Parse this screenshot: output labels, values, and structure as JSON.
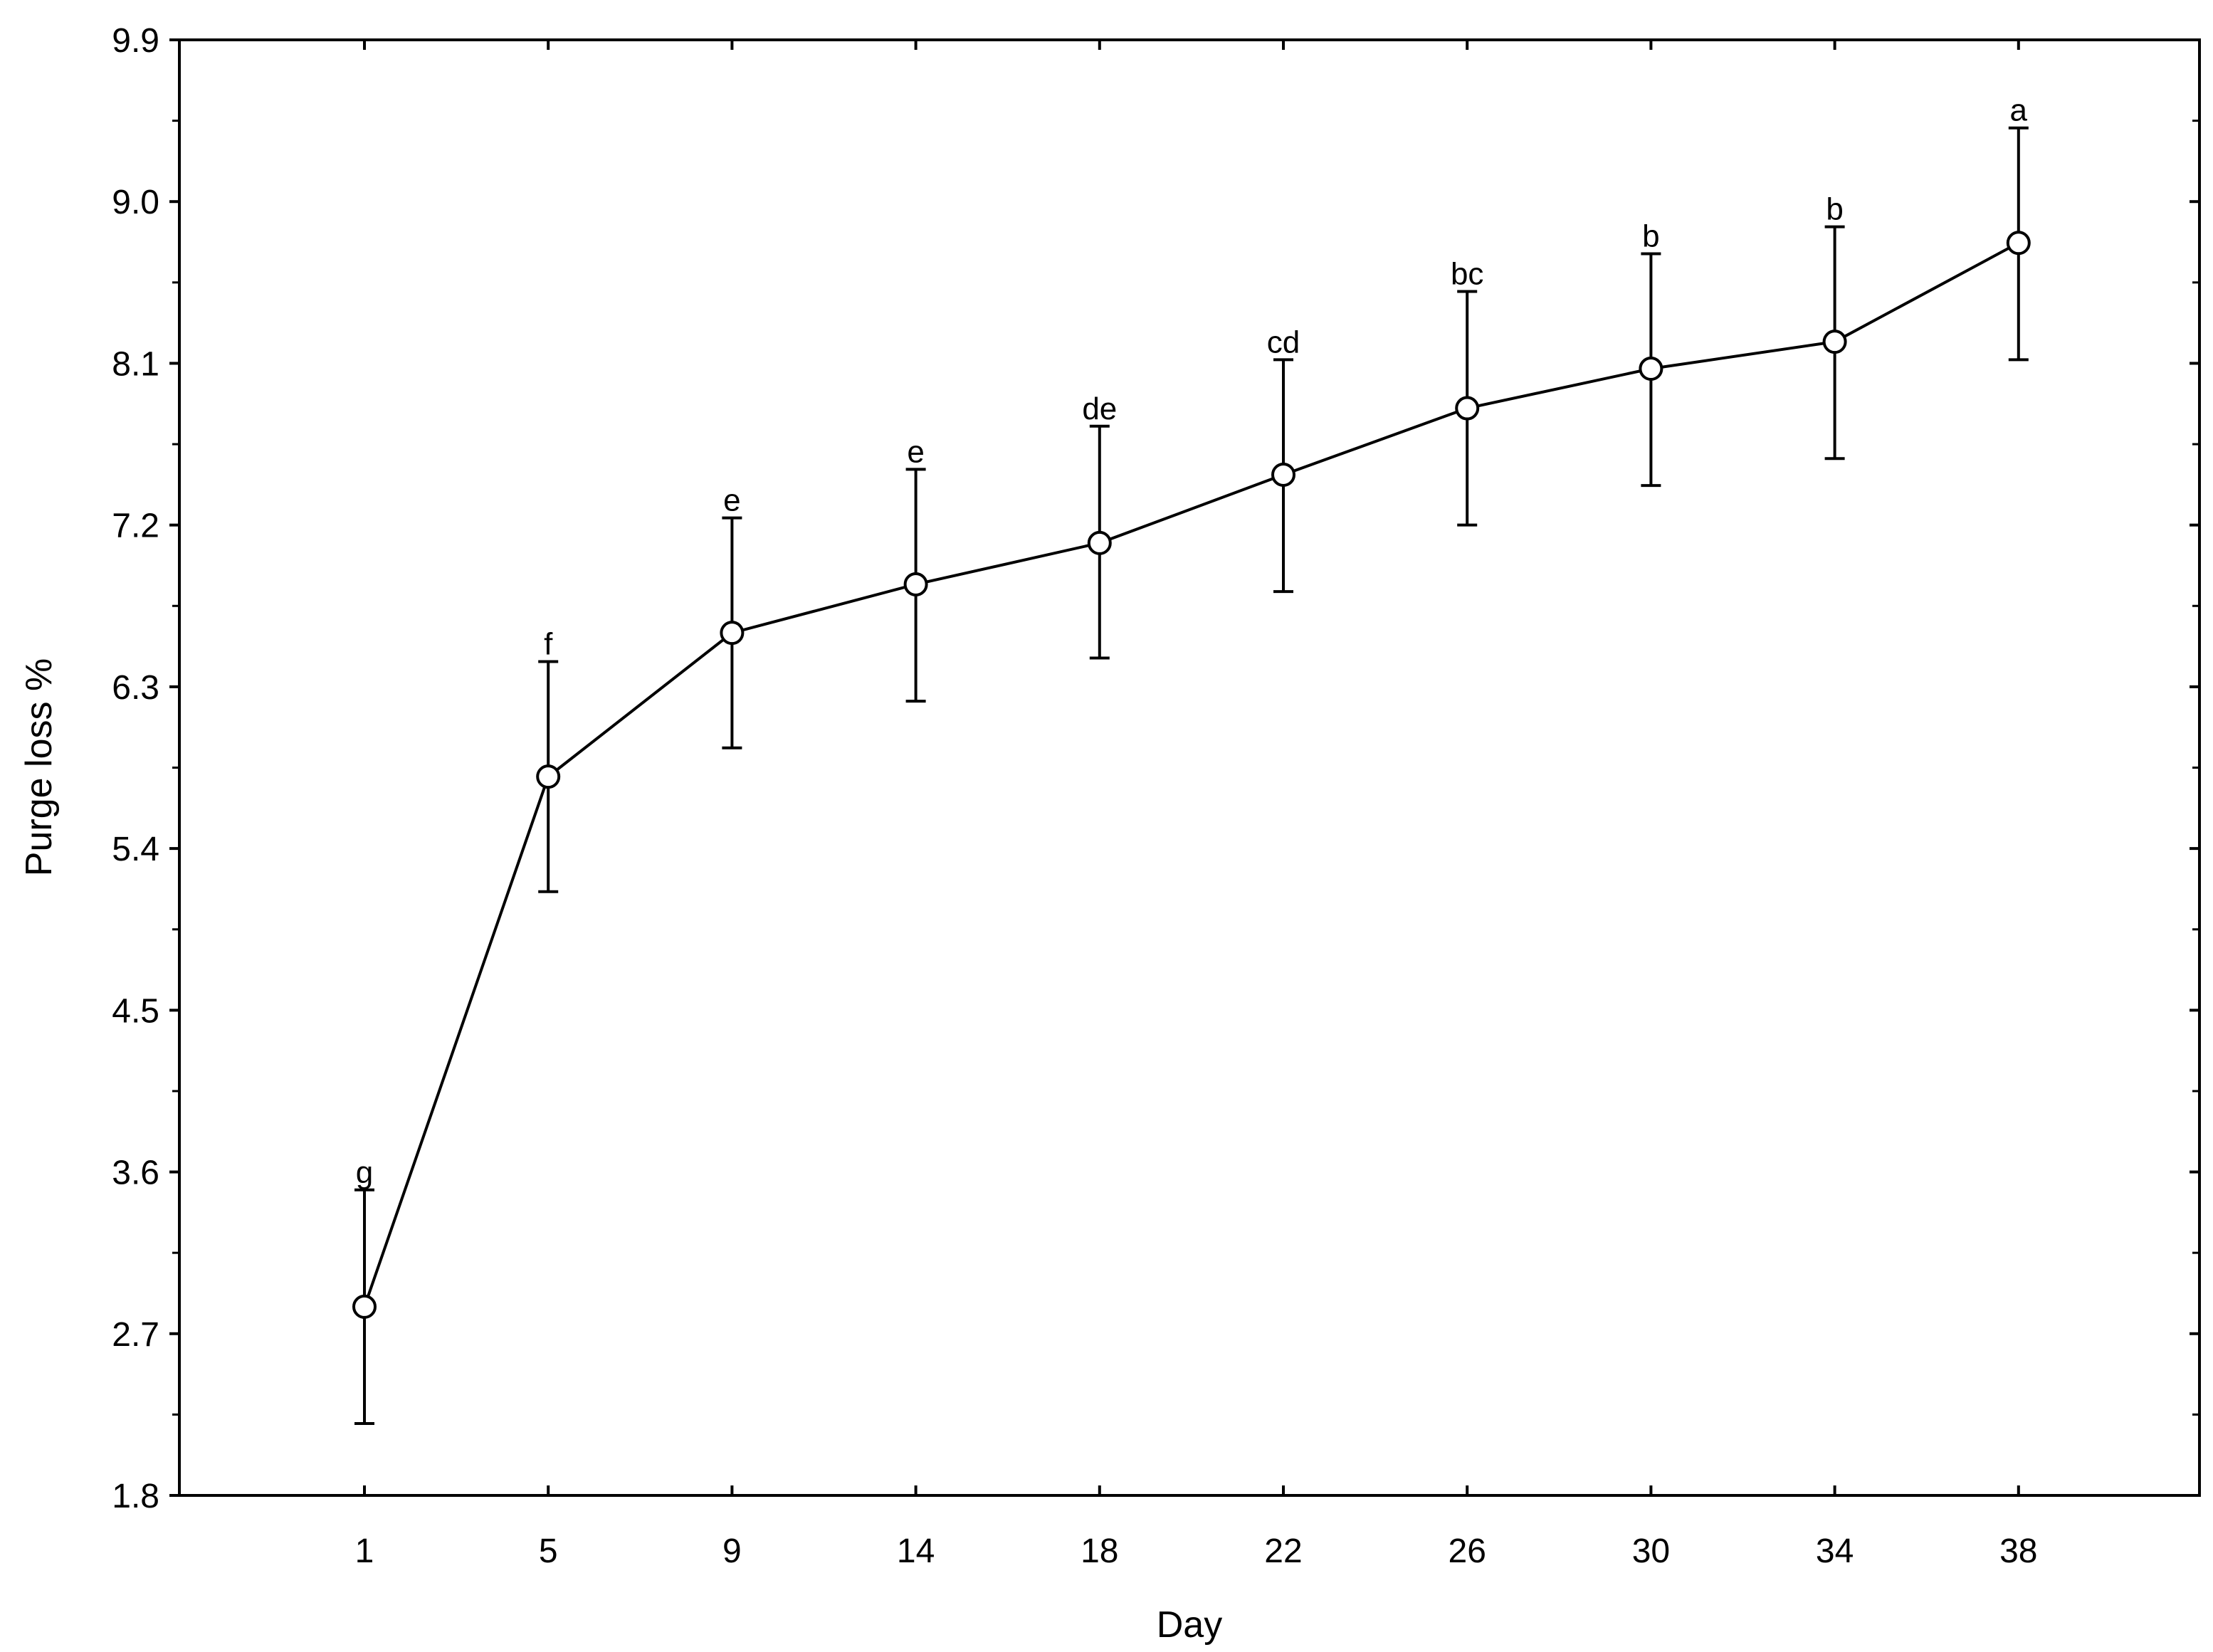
{
  "chart_data": {
    "type": "line",
    "xlabel": "Day",
    "ylabel": "Purge loss %",
    "categories": [
      "1",
      "5",
      "9",
      "14",
      "18",
      "22",
      "26",
      "30",
      "34",
      "38"
    ],
    "ylim": [
      1.8,
      9.9
    ],
    "yticks": [
      "1.8",
      "2.7",
      "3.6",
      "4.5",
      "5.4",
      "6.3",
      "7.2",
      "8.1",
      "9.0",
      "9.9"
    ],
    "grid": false,
    "legend": "none",
    "series": [
      {
        "values": [
          2.85,
          5.8,
          6.6,
          6.87,
          7.1,
          7.48,
          7.85,
          8.07,
          8.22,
          8.77
        ],
        "error_low": [
          2.2,
          5.16,
          5.96,
          6.22,
          6.46,
          6.83,
          7.2,
          7.42,
          7.57,
          8.12
        ],
        "error_high": [
          3.5,
          6.44,
          7.24,
          7.51,
          7.75,
          8.12,
          8.5,
          8.71,
          8.86,
          9.41
        ],
        "significance": [
          "g",
          "f",
          "e",
          "e",
          "de",
          "cd",
          "bc",
          "b",
          "b",
          "a"
        ],
        "color": "#000000"
      }
    ]
  }
}
